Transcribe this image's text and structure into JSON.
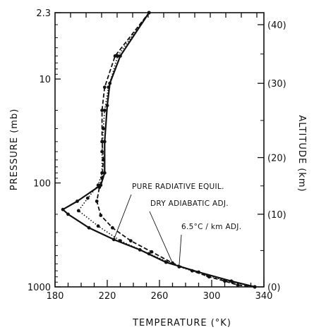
{
  "chart_data": {
    "type": "line",
    "xlabel": "TEMPERATURE (°K)",
    "ylabel_left": "PRESSURE (mb)",
    "ylabel_right": "ALTITUDE (km)",
    "xlim": [
      180,
      340
    ],
    "ylim_pressure": [
      2.3,
      1000
    ],
    "y_scale": "log",
    "x_ticks": [
      {
        "value": 180,
        "label": "180"
      },
      {
        "value": 220,
        "label": "220"
      },
      {
        "value": 260,
        "label": "260"
      },
      {
        "value": 300,
        "label": "300"
      },
      {
        "value": 340,
        "label": "340"
      }
    ],
    "y_ticks_left": [
      {
        "pressure": 2.3,
        "label": "2.3"
      },
      {
        "pressure": 10,
        "label": "10"
      },
      {
        "pressure": 100,
        "label": "100"
      },
      {
        "pressure": 1000,
        "label": "1000"
      }
    ],
    "y_ticks_right": [
      {
        "pressure": 1000,
        "label": "(0)"
      },
      {
        "pressure": 200,
        "label": "(10)"
      },
      {
        "pressure": 57,
        "label": "(20)"
      },
      {
        "pressure": 11,
        "label": "(30)"
      },
      {
        "pressure": 3.0,
        "label": "(40)"
      }
    ],
    "series": [
      {
        "name": "PURE RADIATIVE EQUIL.",
        "style": "solid",
        "points": [
          [
            333,
            1000
          ],
          [
            315,
            880
          ],
          [
            290,
            720
          ],
          [
            265,
            580
          ],
          [
            245,
            440
          ],
          [
            225,
            350
          ],
          [
            206,
            270
          ],
          [
            190,
            200
          ],
          [
            186,
            180
          ],
          [
            197,
            150
          ],
          [
            215,
            105
          ],
          [
            218,
            80
          ],
          [
            218,
            40
          ],
          [
            220,
            18
          ],
          [
            222,
            11
          ],
          [
            230,
            6
          ],
          [
            252,
            2.3
          ]
        ]
      },
      {
        "name": "DRY ADIABATIC ADJ.",
        "style": "dashed",
        "points": [
          [
            333,
            1000
          ],
          [
            320,
            960
          ],
          [
            310,
            880
          ],
          [
            298,
            800
          ],
          [
            285,
            700
          ],
          [
            270,
            590
          ],
          [
            254,
            460
          ],
          [
            238,
            360
          ],
          [
            224,
            270
          ],
          [
            215,
            205
          ],
          [
            212,
            150
          ],
          [
            214,
            110
          ],
          [
            216,
            90
          ],
          [
            217,
            60
          ],
          [
            216,
            40
          ],
          [
            216,
            20
          ],
          [
            218,
            12
          ],
          [
            226,
            6
          ],
          [
            252,
            2.3
          ]
        ]
      },
      {
        "name": "6.5°C / km ADJ.",
        "style": "dotted",
        "points": [
          [
            333,
            1000
          ],
          [
            316,
            900
          ],
          [
            297,
            780
          ],
          [
            275,
            640
          ],
          [
            252,
            480
          ],
          [
            230,
            360
          ],
          [
            213,
            260
          ],
          [
            198,
            185
          ],
          [
            205,
            140
          ],
          [
            213,
            105
          ],
          [
            216,
            80
          ],
          [
            216,
            50
          ],
          [
            217,
            30
          ],
          [
            218,
            20
          ],
          [
            221,
            12
          ],
          [
            228,
            6
          ],
          [
            252,
            2.3
          ]
        ]
      }
    ],
    "annotations": [
      {
        "text": "PURE RADIATIVE EQUIL.",
        "target_series": 0
      },
      {
        "text": "DRY ADIABATIC ADJ.",
        "target_series": 1
      },
      {
        "text": "6.5°C / km ADJ.",
        "target_series": 2
      }
    ],
    "grid": false,
    "legend": "none"
  }
}
